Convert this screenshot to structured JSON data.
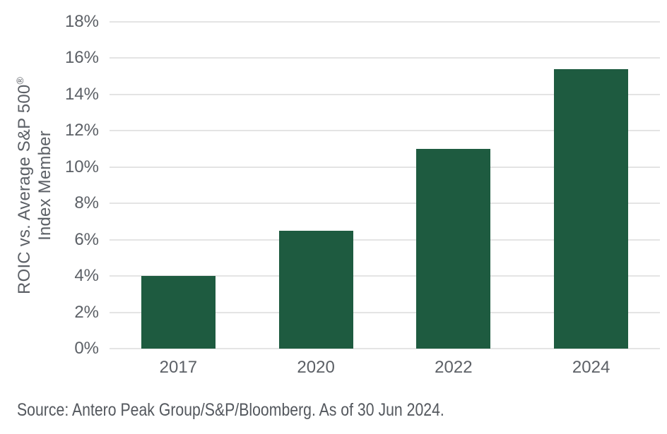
{
  "chart_data": {
    "type": "bar",
    "categories": [
      "2017",
      "2020",
      "2022",
      "2024"
    ],
    "values": [
      4.0,
      6.5,
      11.0,
      15.4
    ],
    "title": "",
    "xlabel": "",
    "ylabel": "ROIC vs. Average S&P 500® Index Member",
    "ylabel_line1": "ROIC vs. Average S&P 500",
    "ylabel_sup": "®",
    "ylabel_line2": "Index Member",
    "ylim": [
      0,
      18
    ],
    "ytick_values": [
      0,
      2,
      4,
      6,
      8,
      10,
      12,
      14,
      16,
      18
    ],
    "ytick_labels": [
      "0%",
      "2%",
      "4%",
      "6%",
      "8%",
      "10%",
      "12%",
      "14%",
      "16%",
      "18%"
    ],
    "grid": true,
    "legend": "none",
    "bar_color": "#1e5b40"
  },
  "source_note": "Source: Antero Peak Group/S&P/Bloomberg. As of 30 Jun 2024.",
  "colors": {
    "bar": "#1e5b40",
    "axis_text": "#5c6066",
    "gridline": "#e4e4e4",
    "background": "#ffffff"
  }
}
